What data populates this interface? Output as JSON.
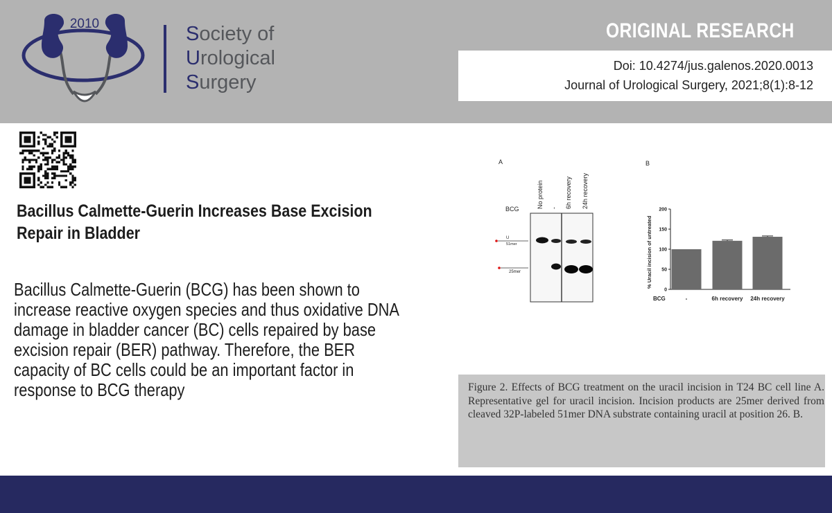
{
  "header": {
    "logo": {
      "year": "2010",
      "name_lines": [
        {
          "initial": "S",
          "rest": "ociety of"
        },
        {
          "initial": "U",
          "rest": "rological"
        },
        {
          "initial": "S",
          "rest": "urgery"
        }
      ]
    },
    "badge": "ORIGINAL RESEARCH",
    "doi": "Doi: 10.4274/jus.galenos.2020.0013",
    "journal": "Journal of Urological Surgery, 2021;8(1):8-12"
  },
  "article": {
    "title": "Bacillus Calmette-Guerin Increases Base Excision Repair in Bladder",
    "abstract": "Bacillus Calmette-Guerin (BCG) has been shown to increase reactive oxygen species and thus oxidative DNA damage in bladder cancer (BC) cells repaired by base excision repair (BER) pathway. Therefore, the BER capacity of BC cells could be an important factor in response to BCG therapy"
  },
  "figure": {
    "panel_a": {
      "label": "A",
      "row_label": "BCG",
      "lanes": [
        "No protein",
        "-",
        "6h recovery",
        "24h recovery"
      ],
      "band_u_label": "U",
      "band_51_label": "51mer",
      "band_25_label": "25mer"
    },
    "panel_b": {
      "label": "B",
      "row_label": "BCG"
    },
    "caption": "Figure 2. Effects of BCG treatment on the uracil incision in T24 BC cell line A. Representative gel for uracil incision. Incision products are 25mer derived from cleaved 32P-labeled 51mer DNA substrate containing uracil at position 26. B."
  },
  "chart_data": {
    "type": "bar",
    "title": "",
    "xlabel": "BCG",
    "ylabel": "% Uracil incision of untreated",
    "categories": [
      "-",
      "6h recovery",
      "24h recovery"
    ],
    "values": [
      100,
      121,
      131
    ],
    "errors": [
      0,
      2,
      2
    ],
    "ylim": [
      0,
      200
    ],
    "yticks": [
      0,
      50,
      100,
      150,
      200
    ],
    "grid": false,
    "colors": {
      "bar": "#6b6b6b"
    }
  },
  "colors": {
    "header_bg": "#b3b3b3",
    "navy": "#2b2e6e",
    "footer": "#262960",
    "caption_bg": "#c7c7c7"
  },
  "icons": {
    "logo": "kidneys-bladder-logo",
    "qr": "qr-code-icon"
  }
}
